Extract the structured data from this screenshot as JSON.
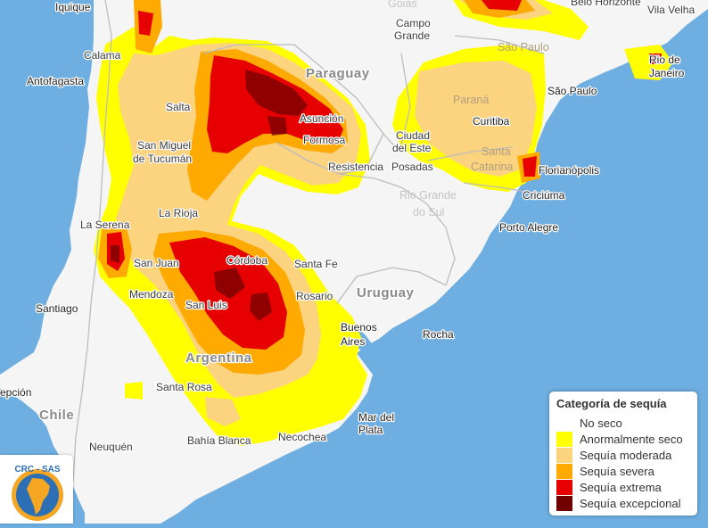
{
  "legend": {
    "title": "Categoría de sequía",
    "items": [
      {
        "label": "No seco",
        "color": "#ffffff"
      },
      {
        "label": "Anormalmente seco",
        "color": "#ffff00"
      },
      {
        "label": "Sequía moderada",
        "color": "#fcd37f"
      },
      {
        "label": "Sequía severa",
        "color": "#ffaa00"
      },
      {
        "label": "Sequía extrema",
        "color": "#e60000"
      },
      {
        "label": "Sequía excepcional",
        "color": "#730000"
      }
    ]
  },
  "logo": {
    "text": "CRC - SAS",
    "icon": "south-america-globe-icon"
  },
  "map": {
    "colors": {
      "ocean": "#6eaee0",
      "land": "#f5f5f5",
      "border": "#bdbdbd"
    },
    "countries": {
      "paraguay": "Paraguay",
      "uruguay": "Uruguay",
      "argentina": "Argentina",
      "chile": "Chile"
    },
    "regions": {
      "parana": "Paraná",
      "santa_catarina_1": "Santa",
      "santa_catarina_2": "Catarina",
      "rio_grande_1": "Rio Grande",
      "rio_grande_2": "do Sul"
    },
    "cities": {
      "iquique": "Iquique",
      "antofagasta": "Antofagasta",
      "calama": "Calama",
      "salta": "Salta",
      "tucuman_1": "San Miguel",
      "tucuman_2": "de Tucumán",
      "la_serena": "La Serena",
      "la_rioja": "La Rioja",
      "san_juan": "San Juan",
      "mendoza": "Mendoza",
      "santiago": "Santiago",
      "concepcion": "epción",
      "cordoba": "Córdoba",
      "san_luis": "San Luis",
      "santa_fe": "Santa Fe",
      "rosario": "Rosario",
      "santa_rosa": "Santa Rosa",
      "neuquen": "Neuquén",
      "bahia_blanca": "Bahía Blanca",
      "necochea": "Necochea",
      "mar_del_plata_1": "Mar del",
      "mar_del_plata_2": "Plata",
      "buenos_aires_1": "Buenos",
      "buenos_aires_2": "Aires",
      "rocha": "Rocha",
      "asuncion": "Asunción",
      "formosa": "Formosa",
      "resistencia": "Resistencia",
      "posadas": "Posadas",
      "ciudad_del_este_1": "Ciudad",
      "ciudad_del_este_2": "del Este",
      "campo_grande_1": "Campo",
      "campo_grande_2": "Grande",
      "sao_paulo_state": "São Paulo",
      "sao_paulo": "São Paulo",
      "curitiba": "Curitiba",
      "florianopolis": "Florianópolis",
      "criciuma": "Criciúma",
      "porto_alegre": "Porto Alegre",
      "rio_1": "Rio de",
      "rio_2": "Janeiro",
      "belo_horizonte": "Belo Horizonte",
      "vila_velha": "Vila Velha",
      "goias": "Goiás"
    }
  }
}
